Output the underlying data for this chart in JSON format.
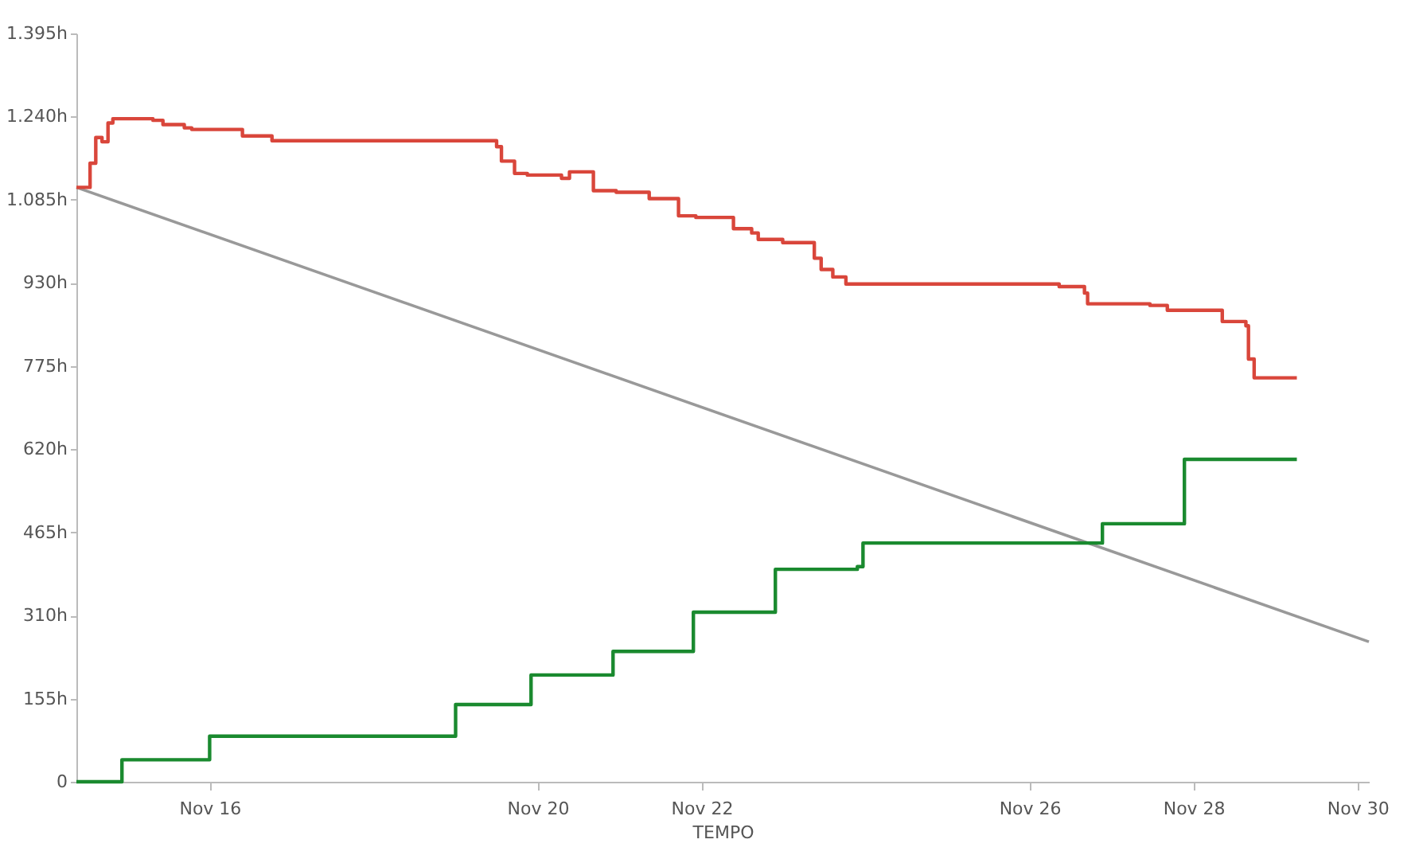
{
  "chart_data": {
    "type": "step",
    "xlabel": "TEMPO",
    "xlim": [
      "--11-14T09:00",
      "--11-30T03:20"
    ],
    "xticks": [
      {
        "value": "--11-16",
        "label": "Nov 16"
      },
      {
        "value": "--11-20",
        "label": "Nov 20"
      },
      {
        "value": "--11-22",
        "label": "Nov 22"
      },
      {
        "value": "--11-26",
        "label": "Nov 26"
      },
      {
        "value": "--11-28",
        "label": "Nov 28"
      },
      {
        "value": "--11-30",
        "label": "Nov 30"
      }
    ],
    "ylim": [
      0,
      1395
    ],
    "yticks": [
      0,
      {
        "value": 155,
        "label": "155h"
      },
      {
        "value": 310,
        "label": "310h"
      },
      {
        "value": 465,
        "label": "465h"
      },
      {
        "value": 620,
        "label": "620h"
      },
      {
        "value": 775,
        "label": "775h"
      },
      {
        "value": 930,
        "label": "930h"
      },
      {
        "value": 1085,
        "label": "1.085h"
      },
      {
        "value": 1240,
        "label": "1.240h"
      },
      {
        "value": 1395,
        "label": "1.395h"
      }
    ],
    "series": [
      {
        "type": "line",
        "color": "#999999",
        "x": [
          "--11-14T09:00",
          "--11-30T03:20"
        ],
        "values": [
          1108,
          261
        ]
      },
      {
        "color": "#d9463b",
        "x": [
          "--11-14T09:00",
          "--11-14T13:00",
          "--11-14T14:40",
          "--11-14T16:30",
          "--11-14T18:15",
          "--11-14T19:40",
          "--11-15T07:25",
          "--11-15T10:20",
          "--11-15T16:35",
          "--11-15T18:45",
          "--11-16T09:36",
          "--11-16T18:15",
          "--11-19T12:00",
          "--11-19T13:25",
          "--11-19T17:15",
          "--11-19T21:00",
          "--11-20T07:00",
          "--11-20T09:20",
          "--11-20T16:20",
          "--11-20T23:00",
          "--11-21T08:40",
          "--11-21T17:15",
          "--11-21T22:20",
          "--11-22T09:20",
          "--11-22T14:40",
          "--11-22T16:35",
          "--11-22T23:45",
          "--11-23T09:00",
          "--11-23T11:00",
          "--11-23T14:25",
          "--11-23T18:15",
          "--11-26T08:40",
          "--11-26T16:05",
          "--11-26T17:00",
          "--11-27T11:15",
          "--11-27T16:20",
          "--11-28T08:25",
          "--11-28T15:20",
          "--11-28T16:05",
          "--11-28T17:45",
          "--11-29T06:15"
        ],
        "values": [
          1108,
          1153,
          1201,
          1193,
          1228,
          1236,
          1233,
          1225,
          1219,
          1216,
          1204,
          1195,
          1184,
          1157,
          1134,
          1131,
          1125,
          1137,
          1102,
          1099,
          1087,
          1055,
          1052,
          1031,
          1023,
          1011,
          1005,
          976,
          955,
          941,
          928,
          923,
          911,
          891,
          888,
          879,
          858,
          850,
          788,
          753,
          753
        ]
      },
      {
        "color": "#1a8a2f",
        "x": [
          "--11-14T09:00",
          "--11-14T22:20",
          "--11-16T00:00",
          "--11-19T00:00",
          "--11-19T22:05",
          "--11-20T22:05",
          "--11-21T21:36",
          "--11-22T21:36",
          "--11-23T21:36",
          "--11-23T23:15",
          "--11-26T21:20",
          "--11-27T21:20",
          "--11-29T06:15"
        ],
        "values": [
          0,
          41,
          85,
          144,
          199,
          243,
          316,
          396,
          401,
          445,
          481,
          601,
          601
        ]
      }
    ]
  }
}
